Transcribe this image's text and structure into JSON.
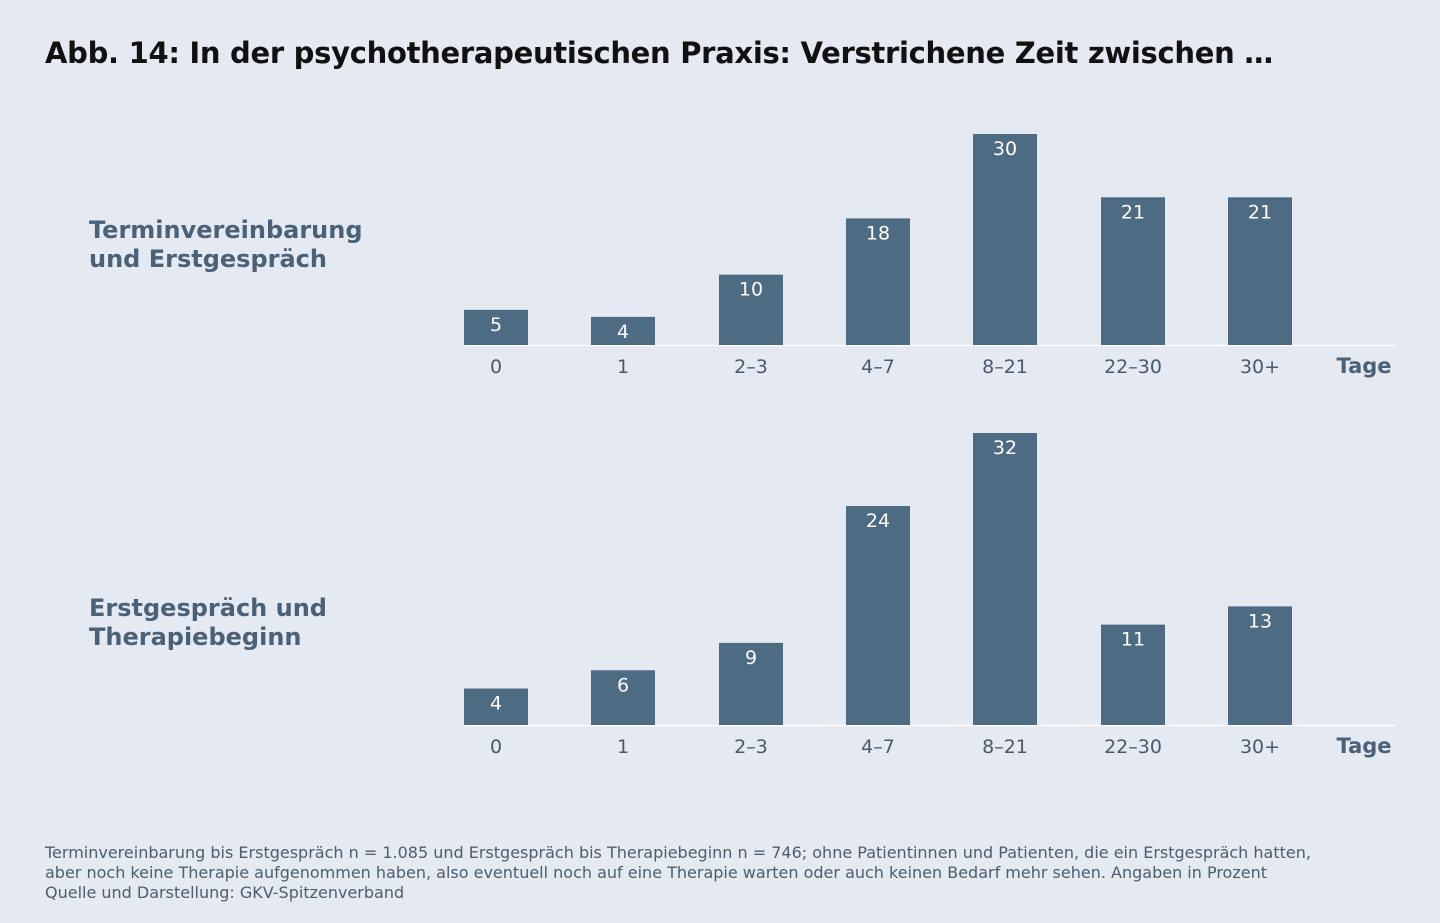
{
  "title": "Abb. 14: In der psychotherapeutischen Praxis: Verstrichene Zeit zwischen …",
  "chart_data": [
    {
      "type": "bar",
      "title": "Terminvereinbarung und Erstgespräch",
      "title_lines": [
        "Terminvereinbarung",
        "und Erstgespräch"
      ],
      "categories": [
        "0",
        "1",
        "2–3",
        "4–7",
        "8–21",
        "22–30",
        "30+"
      ],
      "values": [
        5,
        4,
        10,
        18,
        30,
        21,
        21
      ],
      "xlabel": "Tage",
      "ylabel": "",
      "ylim": [
        0,
        30
      ],
      "grid": false
    },
    {
      "type": "bar",
      "title": "Erstgespräch und Therapiebeginn",
      "title_lines": [
        "Erstgespräch und",
        "Therapiebeginn"
      ],
      "categories": [
        "0",
        "1",
        "2–3",
        "4–7",
        "8–21",
        "22–30",
        "30+"
      ],
      "values": [
        4,
        6,
        9,
        24,
        32,
        11,
        13
      ],
      "xlabel": "Tage",
      "ylabel": "",
      "ylim": [
        0,
        32
      ],
      "grid": false
    }
  ],
  "footnote": [
    "Terminvereinbarung bis Erstgespräch n = 1.085 und Erstgespräch bis Therapiebeginn n = 746; ohne Patientinnen und Patienten, die ein Erstgespräch hatten,",
    "aber noch keine Therapie aufgenommen haben, also eventuell noch auf eine Therapie warten oder auch keinen Bedarf mehr sehen. Angaben in Prozent",
    "Quelle und Darstellung: GKV-Spitzenverband"
  ],
  "colors": {
    "bar": "#4e6b84",
    "baseline": "#ffffff",
    "label": "#4b6178"
  }
}
